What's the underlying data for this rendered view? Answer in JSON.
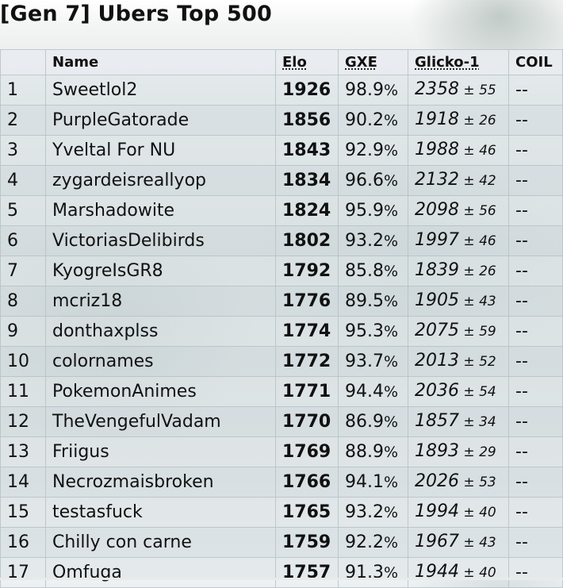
{
  "page": {
    "title": "[Gen 7] Ubers Top 500"
  },
  "table": {
    "headers": {
      "rank": "",
      "name": "Name",
      "elo": "Elo",
      "gxe": "GXE",
      "glicko": "Glicko-1",
      "coil": "COIL"
    },
    "rows": [
      {
        "rank": "1",
        "name": "Sweetlol2",
        "elo": "1926",
        "gxe": "98.9",
        "glicko": "2358",
        "dev": "55",
        "coil": "--"
      },
      {
        "rank": "2",
        "name": "PurpleGatorade",
        "elo": "1856",
        "gxe": "90.2",
        "glicko": "1918",
        "dev": "26",
        "coil": "--"
      },
      {
        "rank": "3",
        "name": "Yveltal For NU",
        "elo": "1843",
        "gxe": "92.9",
        "glicko": "1988",
        "dev": "46",
        "coil": "--"
      },
      {
        "rank": "4",
        "name": "zygardeisreallyop",
        "elo": "1834",
        "gxe": "96.6",
        "glicko": "2132",
        "dev": "42",
        "coil": "--"
      },
      {
        "rank": "5",
        "name": "Marshadowite",
        "elo": "1824",
        "gxe": "95.9",
        "glicko": "2098",
        "dev": "56",
        "coil": "--"
      },
      {
        "rank": "6",
        "name": "VictoriasDelibirds",
        "elo": "1802",
        "gxe": "93.2",
        "glicko": "1997",
        "dev": "46",
        "coil": "--"
      },
      {
        "rank": "7",
        "name": "KyogreIsGR8",
        "elo": "1792",
        "gxe": "85.8",
        "glicko": "1839",
        "dev": "26",
        "coil": "--"
      },
      {
        "rank": "8",
        "name": "mcriz18",
        "elo": "1776",
        "gxe": "89.5",
        "glicko": "1905",
        "dev": "43",
        "coil": "--"
      },
      {
        "rank": "9",
        "name": "donthaxplss",
        "elo": "1774",
        "gxe": "95.3",
        "glicko": "2075",
        "dev": "59",
        "coil": "--"
      },
      {
        "rank": "10",
        "name": "colornames",
        "elo": "1772",
        "gxe": "93.7",
        "glicko": "2013",
        "dev": "52",
        "coil": "--"
      },
      {
        "rank": "11",
        "name": "PokemonAnimes",
        "elo": "1771",
        "gxe": "94.4",
        "glicko": "2036",
        "dev": "54",
        "coil": "--"
      },
      {
        "rank": "12",
        "name": "TheVengefulVadam",
        "elo": "1770",
        "gxe": "86.9",
        "glicko": "1857",
        "dev": "34",
        "coil": "--"
      },
      {
        "rank": "13",
        "name": "Friigus",
        "elo": "1769",
        "gxe": "88.9",
        "glicko": "1893",
        "dev": "29",
        "coil": "--"
      },
      {
        "rank": "14",
        "name": "Necrozmaisbroken",
        "elo": "1766",
        "gxe": "94.1",
        "glicko": "2026",
        "dev": "53",
        "coil": "--"
      },
      {
        "rank": "15",
        "name": "testasfuck",
        "elo": "1765",
        "gxe": "93.2",
        "glicko": "1994",
        "dev": "40",
        "coil": "--"
      },
      {
        "rank": "16",
        "name": "Chilly con carne",
        "elo": "1759",
        "gxe": "92.2",
        "glicko": "1967",
        "dev": "43",
        "coil": "--"
      },
      {
        "rank": "17",
        "name": "Omfuga",
        "elo": "1757",
        "gxe": "91.3",
        "glicko": "1944",
        "dev": "40",
        "coil": "--"
      }
    ],
    "percent_sign": "%",
    "plus_minus": "±"
  }
}
